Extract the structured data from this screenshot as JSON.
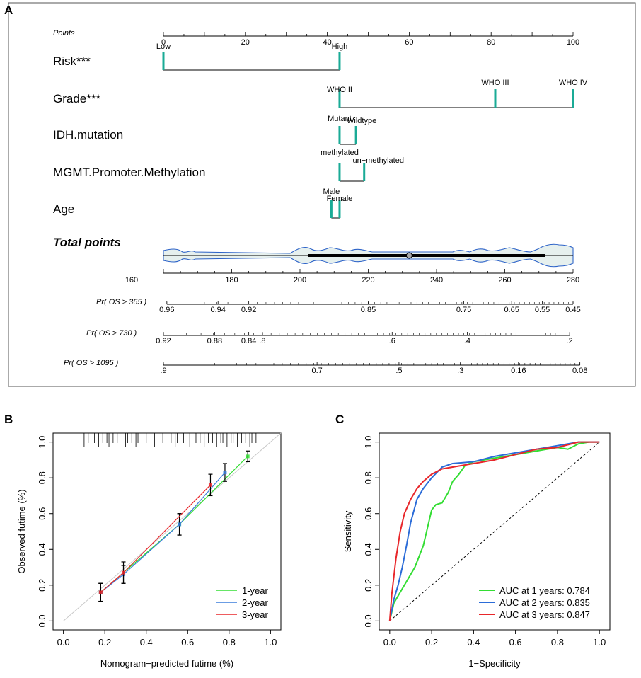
{
  "panels": {
    "a": "A",
    "b": "B",
    "c": "C"
  },
  "nomogram": {
    "points_label": "Points",
    "points_ticks": [
      "0",
      "20",
      "40",
      "60",
      "80",
      "100"
    ],
    "risk": {
      "label": "Risk***",
      "low": "Low",
      "high": "High",
      "low_pts": 0,
      "high_pts": 43
    },
    "grade": {
      "label": "Grade***",
      "levels": [
        {
          "name": "WHO II",
          "pts": 43
        },
        {
          "name": "WHO III",
          "pts": 81
        },
        {
          "name": "WHO IV",
          "pts": 100
        }
      ]
    },
    "idh": {
      "label": "IDH.mutation",
      "levels": [
        {
          "name": "Mutant",
          "pts": 43
        },
        {
          "name": "Wildtype",
          "pts": 47
        }
      ]
    },
    "mgmt": {
      "label": "MGMT.Promoter.Methylation",
      "levels": [
        {
          "name": "methylated",
          "pts": 43
        },
        {
          "name": "un−methylated",
          "pts": 49
        }
      ]
    },
    "age": {
      "label": "Age",
      "levels": [
        {
          "name": "Male",
          "pts": 41
        },
        {
          "name": "Female",
          "pts": 43
        }
      ]
    },
    "total": {
      "label": "Total points",
      "ticks": [
        "160",
        "180",
        "200",
        "220",
        "240",
        "260",
        "280"
      ],
      "marker_value": 232
    },
    "pr_rows": [
      {
        "label": "Pr( OS > 365 )",
        "ticks": [
          {
            "v": "0.96",
            "t": 161
          },
          {
            "v": "0.94",
            "t": 176
          },
          {
            "v": "0.92",
            "t": 185
          },
          {
            "v": "0.85",
            "t": 220
          },
          {
            "v": "0.75",
            "t": 248
          },
          {
            "v": "0.65",
            "t": 262
          },
          {
            "v": "0.55",
            "t": 271
          },
          {
            "v": "0.45",
            "t": 280
          }
        ]
      },
      {
        "label": "Pr( OS > 730 )",
        "ticks": [
          {
            "v": "0.92",
            "t": 160
          },
          {
            "v": "0.88",
            "t": 175
          },
          {
            "v": "0.84",
            "t": 185
          },
          {
            "v": ".8",
            "t": 189
          },
          {
            "v": ".6",
            "t": 227
          },
          {
            "v": ".4",
            "t": 249
          },
          {
            "v": ".2",
            "t": 279
          }
        ]
      },
      {
        "label": "Pr( OS > 1095 )",
        "ticks": [
          {
            "v": ".9",
            "t": 160
          },
          {
            "v": "0.7",
            "t": 205
          },
          {
            "v": ".5",
            "t": 229
          },
          {
            "v": ".3",
            "t": 247
          },
          {
            "v": "0.16",
            "t": 264
          },
          {
            "v": "0.08",
            "t": 282
          }
        ]
      }
    ]
  },
  "chart_data": [
    {
      "type": "line",
      "title": "",
      "xlabel": "Nomogram−predicted futime (%)",
      "ylabel": "Observed futime (%)",
      "xlim": [
        -0.05,
        1.05
      ],
      "ylim": [
        -0.05,
        1.05
      ],
      "xticks": [
        "0.0",
        "0.2",
        "0.4",
        "0.6",
        "0.8",
        "1.0"
      ],
      "yticks": [
        "0.0",
        "0.2",
        "0.4",
        "0.6",
        "0.8",
        "1.0"
      ],
      "legend": "bottom-right",
      "series": [
        {
          "name": "1-year",
          "color": "#33dd33",
          "x": [
            0.18,
            0.56,
            0.89
          ],
          "y": [
            0.16,
            0.54,
            0.92
          ],
          "err": [
            0.05,
            0.06,
            0.03
          ]
        },
        {
          "name": "2-year",
          "color": "#3a7ddb",
          "x": [
            0.18,
            0.29,
            0.56,
            0.78
          ],
          "y": [
            0.16,
            0.26,
            0.54,
            0.83
          ],
          "err": [
            0.05,
            0.05,
            0.06,
            0.05
          ]
        },
        {
          "name": "3-year",
          "color": "#e8262a",
          "x": [
            0.18,
            0.29,
            0.71
          ],
          "y": [
            0.16,
            0.27,
            0.76
          ],
          "err": [
            0.05,
            0.06,
            0.06
          ]
        }
      ]
    },
    {
      "type": "line",
      "title": "",
      "xlabel": "1−Specificity",
      "ylabel": "Sensitivity",
      "xlim": [
        -0.05,
        1.05
      ],
      "ylim": [
        -0.05,
        1.05
      ],
      "xticks": [
        "0.0",
        "0.2",
        "0.4",
        "0.6",
        "0.8",
        "1.0"
      ],
      "yticks": [
        "0.0",
        "0.2",
        "0.4",
        "0.6",
        "0.8",
        "1.0"
      ],
      "legend": "bottom-right",
      "series": [
        {
          "name": "AUC at 1 years: 0.784",
          "color": "#33dd33",
          "x": [
            0,
            0.02,
            0.05,
            0.08,
            0.12,
            0.16,
            0.18,
            0.2,
            0.22,
            0.25,
            0.28,
            0.3,
            0.33,
            0.36,
            0.4,
            0.45,
            0.5,
            0.6,
            0.7,
            0.8,
            0.85,
            0.9,
            0.95,
            1.0
          ],
          "y": [
            0,
            0.1,
            0.16,
            0.22,
            0.3,
            0.42,
            0.52,
            0.62,
            0.65,
            0.66,
            0.72,
            0.78,
            0.82,
            0.87,
            0.89,
            0.9,
            0.91,
            0.93,
            0.95,
            0.97,
            0.96,
            0.99,
            1.0,
            1.0
          ]
        },
        {
          "name": "AUC at 2 years: 0.835",
          "color": "#2b6cd8",
          "x": [
            0,
            0.02,
            0.04,
            0.06,
            0.08,
            0.1,
            0.13,
            0.16,
            0.2,
            0.25,
            0.3,
            0.4,
            0.5,
            0.6,
            0.7,
            0.8,
            0.9,
            1.0
          ],
          "y": [
            0,
            0.12,
            0.2,
            0.3,
            0.42,
            0.55,
            0.68,
            0.74,
            0.8,
            0.86,
            0.88,
            0.89,
            0.92,
            0.94,
            0.96,
            0.98,
            1.0,
            1.0
          ]
        },
        {
          "name": "AUC at 3 years: 0.847",
          "color": "#e8262a",
          "x": [
            0,
            0.01,
            0.02,
            0.03,
            0.05,
            0.07,
            0.1,
            0.13,
            0.16,
            0.2,
            0.25,
            0.3,
            0.4,
            0.5,
            0.6,
            0.7,
            0.8,
            0.9,
            1.0
          ],
          "y": [
            0,
            0.15,
            0.25,
            0.35,
            0.5,
            0.6,
            0.68,
            0.74,
            0.78,
            0.82,
            0.85,
            0.86,
            0.88,
            0.9,
            0.93,
            0.96,
            0.97,
            1.0,
            1.0
          ]
        }
      ]
    }
  ]
}
